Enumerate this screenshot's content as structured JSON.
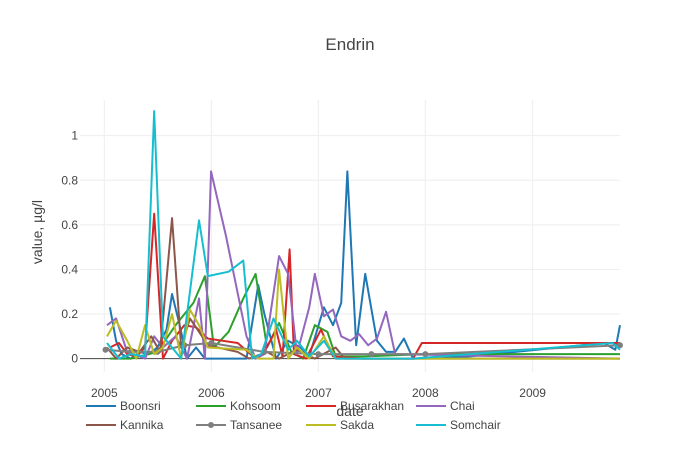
{
  "chart_data": {
    "type": "line",
    "title": "Endrin",
    "xlabel": "date",
    "ylabel": "value, µg/l",
    "xlim": [
      "2004-10-10",
      "2009-10-26"
    ],
    "ylim": [
      -0.06,
      1.16
    ],
    "x_ticks": [
      {
        "date": "2005-01-01",
        "label": "2005"
      },
      {
        "date": "2006-01-01",
        "label": "2006"
      },
      {
        "date": "2007-01-01",
        "label": "2007"
      },
      {
        "date": "2008-01-01",
        "label": "2008"
      },
      {
        "date": "2009-01-01",
        "label": "2009"
      }
    ],
    "y_ticks": [
      {
        "value": 0,
        "label": "0"
      },
      {
        "value": 0.2,
        "label": "0.2"
      },
      {
        "value": 0.4,
        "label": "0.4"
      },
      {
        "value": 0.6,
        "label": "0.6"
      },
      {
        "value": 0.8,
        "label": "0.8"
      },
      {
        "value": 1,
        "label": "1"
      }
    ],
    "grid": true,
    "legend_position": "bottom",
    "series": [
      {
        "name": "Boonsri",
        "color": "#1f77b4",
        "marker": false,
        "points": [
          [
            "2005-01-20",
            0.23
          ],
          [
            "2005-02-10",
            0.08
          ],
          [
            "2005-03-01",
            0.02
          ],
          [
            "2005-04-01",
            0.0
          ],
          [
            "2005-05-01",
            0.03
          ],
          [
            "2005-06-01",
            0.02
          ],
          [
            "2005-07-01",
            0.05
          ],
          [
            "2005-08-01",
            0.13
          ],
          [
            "2005-08-20",
            0.29
          ],
          [
            "2005-09-15",
            0.15
          ],
          [
            "2005-10-10",
            0.0
          ],
          [
            "2005-11-10",
            0.05
          ],
          [
            "2005-12-10",
            0.0
          ],
          [
            "2006-01-01",
            0.0
          ],
          [
            "2006-03-01",
            0.0
          ],
          [
            "2006-05-01",
            0.0
          ],
          [
            "2006-06-10",
            0.33
          ],
          [
            "2006-07-01",
            0.2
          ],
          [
            "2006-08-10",
            0.0
          ],
          [
            "2006-09-20",
            0.08
          ],
          [
            "2006-11-01",
            0.05
          ],
          [
            "2006-12-01",
            0.01
          ],
          [
            "2007-01-20",
            0.23
          ],
          [
            "2007-02-20",
            0.15
          ],
          [
            "2007-03-20",
            0.25
          ],
          [
            "2007-04-10",
            0.84
          ],
          [
            "2007-05-10",
            0.06
          ],
          [
            "2007-06-10",
            0.38
          ],
          [
            "2007-07-20",
            0.08
          ],
          [
            "2007-08-20",
            0.03
          ],
          [
            "2007-09-20",
            0.03
          ],
          [
            "2007-10-20",
            0.09
          ],
          [
            "2007-11-20",
            0.0
          ],
          [
            "2008-06-01",
            0.01
          ],
          [
            "2009-09-01",
            0.07
          ],
          [
            "2009-10-10",
            0.04
          ],
          [
            "2009-10-26",
            0.15
          ]
        ]
      },
      {
        "name": "Kohsoom",
        "color": "#2ca02c",
        "marker": false,
        "points": [
          [
            "2005-01-20",
            0.0
          ],
          [
            "2005-04-01",
            0.0
          ],
          [
            "2005-07-01",
            0.03
          ],
          [
            "2005-09-01",
            0.15
          ],
          [
            "2005-11-01",
            0.25
          ],
          [
            "2005-12-10",
            0.37
          ],
          [
            "2006-01-10",
            0.05
          ],
          [
            "2006-03-01",
            0.12
          ],
          [
            "2006-04-20",
            0.27
          ],
          [
            "2006-06-01",
            0.38
          ],
          [
            "2006-07-10",
            0.05
          ],
          [
            "2006-08-20",
            0.16
          ],
          [
            "2006-10-01",
            0.03
          ],
          [
            "2006-11-10",
            0.0
          ],
          [
            "2006-12-20",
            0.15
          ],
          [
            "2007-02-01",
            0.12
          ],
          [
            "2007-03-01",
            0.01
          ],
          [
            "2007-06-01",
            0.01
          ],
          [
            "2008-01-01",
            0.02
          ],
          [
            "2009-10-26",
            0.02
          ]
        ]
      },
      {
        "name": "Busarakhan",
        "color": "#d62728",
        "marker": false,
        "points": [
          [
            "2005-01-20",
            0.05
          ],
          [
            "2005-02-20",
            0.07
          ],
          [
            "2005-03-20",
            0.02
          ],
          [
            "2005-04-20",
            0.01
          ],
          [
            "2005-05-20",
            0.05
          ],
          [
            "2005-06-20",
            0.65
          ],
          [
            "2005-07-20",
            0.0
          ],
          [
            "2005-08-20",
            0.08
          ],
          [
            "2005-10-01",
            0.15
          ],
          [
            "2005-11-10",
            0.14
          ],
          [
            "2005-12-20",
            0.09
          ],
          [
            "2006-04-01",
            0.07
          ],
          [
            "2006-06-01",
            0.0
          ],
          [
            "2006-07-01",
            0.03
          ],
          [
            "2006-08-10",
            0.13
          ],
          [
            "2006-09-01",
            0.01
          ],
          [
            "2006-09-25",
            0.49
          ],
          [
            "2006-10-10",
            0.02
          ],
          [
            "2006-11-20",
            0.0
          ],
          [
            "2007-01-10",
            0.13
          ],
          [
            "2007-02-20",
            0.01
          ],
          [
            "2007-06-01",
            0.0
          ],
          [
            "2007-11-20",
            0.0
          ],
          [
            "2007-12-20",
            0.07
          ],
          [
            "2009-10-26",
            0.07
          ]
        ]
      },
      {
        "name": "Chai",
        "color": "#9467bd",
        "marker": false,
        "points": [
          [
            "2005-01-10",
            0.15
          ],
          [
            "2005-02-10",
            0.18
          ],
          [
            "2005-03-20",
            0.03
          ],
          [
            "2005-05-20",
            0.0
          ],
          [
            "2005-06-20",
            0.1
          ],
          [
            "2005-07-20",
            0.05
          ],
          [
            "2005-09-01",
            0.1
          ],
          [
            "2005-10-10",
            0.0
          ],
          [
            "2005-11-20",
            0.27
          ],
          [
            "2005-12-10",
            0.0
          ],
          [
            "2005-12-31",
            0.84
          ],
          [
            "2006-02-20",
            0.55
          ],
          [
            "2006-05-01",
            0.1
          ],
          [
            "2006-06-01",
            0.0
          ],
          [
            "2006-07-01",
            0.02
          ],
          [
            "2006-08-20",
            0.46
          ],
          [
            "2006-09-20",
            0.38
          ],
          [
            "2006-10-20",
            0.02
          ],
          [
            "2006-12-01",
            0.23
          ],
          [
            "2006-12-20",
            0.38
          ],
          [
            "2007-01-20",
            0.19
          ],
          [
            "2007-02-20",
            0.22
          ],
          [
            "2007-03-20",
            0.1
          ],
          [
            "2007-04-20",
            0.08
          ],
          [
            "2007-05-20",
            0.11
          ],
          [
            "2007-06-20",
            0.06
          ],
          [
            "2007-07-20",
            0.09
          ],
          [
            "2007-08-20",
            0.21
          ],
          [
            "2007-09-20",
            0.02
          ],
          [
            "2009-10-26",
            0.0
          ]
        ]
      },
      {
        "name": "Kannika",
        "color": "#8c564b",
        "marker": false,
        "points": [
          [
            "2005-01-10",
            0.05
          ],
          [
            "2005-02-10",
            0.0
          ],
          [
            "2005-03-20",
            0.05
          ],
          [
            "2005-05-01",
            0.03
          ],
          [
            "2005-06-10",
            0.1
          ],
          [
            "2005-07-10",
            0.03
          ],
          [
            "2005-08-20",
            0.63
          ],
          [
            "2005-09-20",
            0.05
          ],
          [
            "2005-10-20",
            0.18
          ],
          [
            "2005-11-20",
            0.12
          ],
          [
            "2005-12-20",
            0.06
          ],
          [
            "2006-04-01",
            0.03
          ],
          [
            "2006-05-10",
            0.0
          ],
          [
            "2006-07-10",
            0.03
          ],
          [
            "2006-08-20",
            0.0
          ],
          [
            "2006-10-20",
            0.04
          ],
          [
            "2006-12-20",
            0.0
          ],
          [
            "2007-03-01",
            0.05
          ],
          [
            "2007-04-01",
            0.0
          ],
          [
            "2009-10-26",
            0.0
          ]
        ]
      },
      {
        "name": "Tansanee",
        "color": "#7f7f7f",
        "marker": true,
        "points": [
          [
            "2005-01-05",
            0.04
          ],
          [
            "2005-04-01",
            0.03
          ],
          [
            "2005-07-01",
            0.03
          ],
          [
            "2005-10-01",
            0.06
          ],
          [
            "2006-01-01",
            0.07
          ],
          [
            "2006-07-01",
            0.03
          ],
          [
            "2007-01-01",
            0.02
          ],
          [
            "2007-07-01",
            0.02
          ],
          [
            "2008-01-01",
            0.02
          ],
          [
            "2009-10-26",
            0.06
          ]
        ]
      },
      {
        "name": "Sakda",
        "color": "#bcbd22",
        "marker": false,
        "points": [
          [
            "2005-01-10",
            0.1
          ],
          [
            "2005-02-10",
            0.17
          ],
          [
            "2005-03-20",
            0.08
          ],
          [
            "2005-04-20",
            0.0
          ],
          [
            "2005-05-20",
            0.15
          ],
          [
            "2005-06-20",
            0.02
          ],
          [
            "2005-07-20",
            0.05
          ],
          [
            "2005-08-20",
            0.2
          ],
          [
            "2005-09-20",
            0.0
          ],
          [
            "2005-10-20",
            0.22
          ],
          [
            "2005-11-20",
            0.15
          ],
          [
            "2005-12-20",
            0.05
          ],
          [
            "2006-05-01",
            0.04
          ],
          [
            "2006-06-10",
            0.0
          ],
          [
            "2006-08-01",
            0.0
          ],
          [
            "2006-08-20",
            0.4
          ],
          [
            "2006-09-20",
            0.0
          ],
          [
            "2006-10-20",
            0.05
          ],
          [
            "2006-12-01",
            0.0
          ],
          [
            "2007-01-20",
            0.1
          ],
          [
            "2007-03-01",
            0.0
          ],
          [
            "2009-10-26",
            0.0
          ]
        ]
      },
      {
        "name": "Somchair",
        "color": "#17becf",
        "marker": false,
        "points": [
          [
            "2005-01-10",
            0.07
          ],
          [
            "2005-02-20",
            0.0
          ],
          [
            "2005-04-01",
            0.02
          ],
          [
            "2005-05-20",
            0.01
          ],
          [
            "2005-06-20",
            1.11
          ],
          [
            "2005-07-20",
            0.1
          ],
          [
            "2005-08-20",
            0.05
          ],
          [
            "2005-09-20",
            0.0
          ],
          [
            "2005-10-20",
            0.3
          ],
          [
            "2005-11-20",
            0.62
          ],
          [
            "2005-12-20",
            0.37
          ],
          [
            "2006-03-01",
            0.39
          ],
          [
            "2006-04-20",
            0.44
          ],
          [
            "2006-05-20",
            0.0
          ],
          [
            "2006-06-20",
            0.02
          ],
          [
            "2006-08-01",
            0.18
          ],
          [
            "2006-09-20",
            0.04
          ],
          [
            "2006-10-20",
            0.08
          ],
          [
            "2006-12-01",
            0.01
          ],
          [
            "2007-01-20",
            0.08
          ],
          [
            "2007-03-01",
            0.0
          ],
          [
            "2007-06-01",
            0.0
          ],
          [
            "2007-11-20",
            0.0
          ],
          [
            "2009-10-01",
            0.07
          ],
          [
            "2009-10-26",
            0.04
          ]
        ]
      }
    ]
  }
}
